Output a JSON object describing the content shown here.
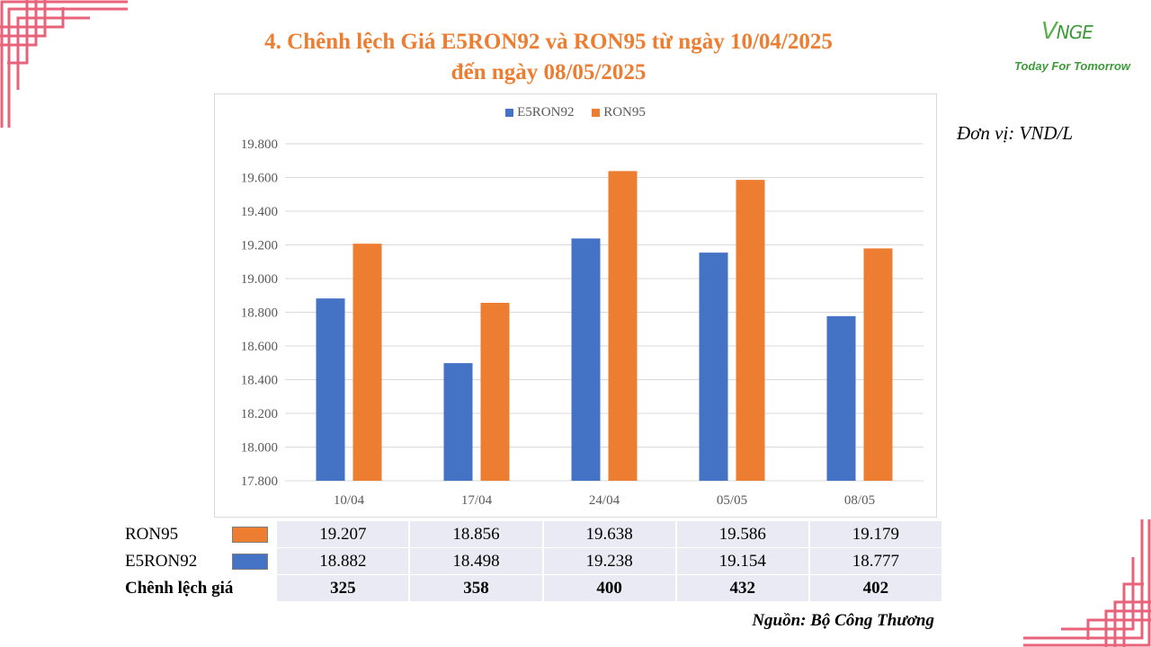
{
  "title_lines": [
    "4. Chênh lệch Giá E5RON92 và RON95 từ ngày 10/04/2025",
    "đến ngày 08/05/2025"
  ],
  "logo": {
    "mark": "V",
    "mark_rest": "NGE",
    "tagline": "Today For Tomorrow"
  },
  "unit": "Đơn vị: VND/L",
  "source": "Nguồn: Bộ Công Thương",
  "colors": {
    "e5": "#4472C4",
    "ron95": "#ED7D31",
    "title": "#ED7D31",
    "corner": "#E8627A"
  },
  "chart_data": {
    "type": "bar",
    "categories": [
      "10/04",
      "17/04",
      "24/04",
      "05/05",
      "08/05"
    ],
    "series": [
      {
        "name": "E5RON92",
        "values": [
          18882,
          18498,
          19238,
          19154,
          18777
        ]
      },
      {
        "name": "RON95",
        "values": [
          19207,
          18856,
          19638,
          19586,
          19179
        ]
      }
    ],
    "ylim": [
      17800,
      19800
    ],
    "yticks": [
      17800,
      18000,
      18200,
      18400,
      18600,
      18800,
      19000,
      19200,
      19400,
      19600,
      19800
    ],
    "ytick_labels": [
      "17.800",
      "18.000",
      "18.200",
      "18.400",
      "18.600",
      "18.800",
      "19.000",
      "19.200",
      "19.400",
      "19.600",
      "19.800"
    ],
    "legend_position": "top-center",
    "grid": true
  },
  "table": {
    "rows": [
      {
        "label": "RON95",
        "swatch": "#ED7D31",
        "values": [
          "19.207",
          "18.856",
          "19.638",
          "19.586",
          "19.179"
        ]
      },
      {
        "label": "E5RON92",
        "swatch": "#4472C4",
        "values": [
          "18.882",
          "18.498",
          "19.238",
          "19.154",
          "18.777"
        ]
      },
      {
        "label": "Chênh lệch giá",
        "swatch": null,
        "values": [
          "325",
          "358",
          "400",
          "432",
          "402"
        ]
      }
    ]
  }
}
